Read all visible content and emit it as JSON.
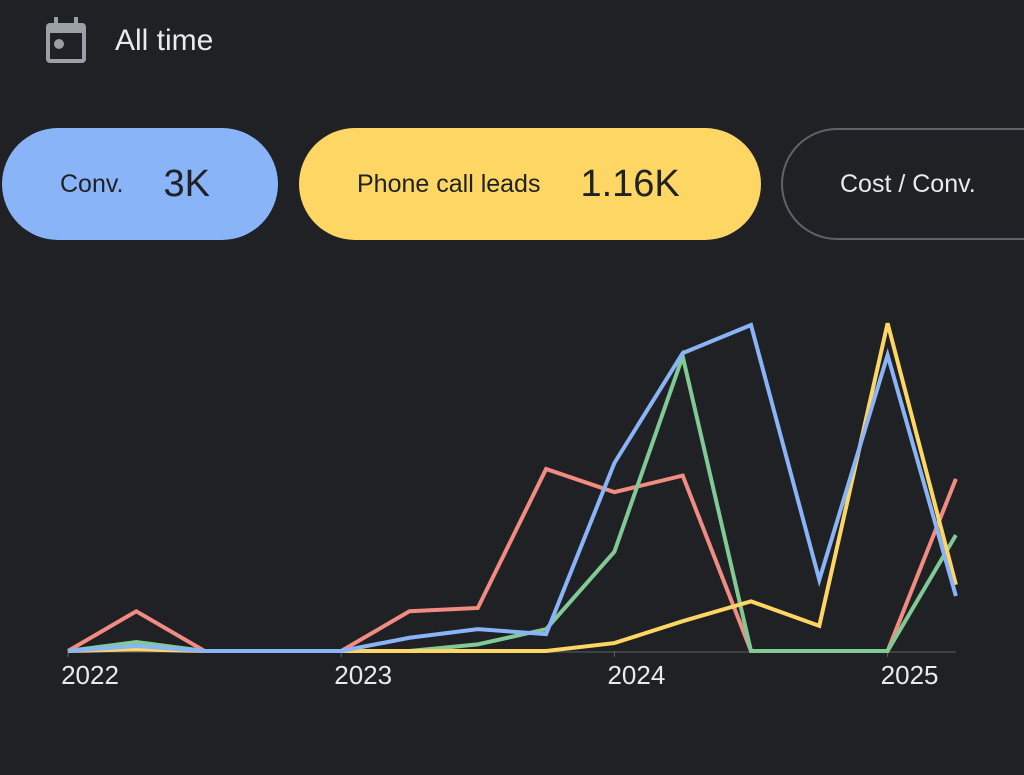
{
  "date_range": {
    "label": "All time",
    "icon": "calendar-icon"
  },
  "metrics": [
    {
      "label": "Conv.",
      "value": "3K",
      "color": "#8ab4f8",
      "selected": true
    },
    {
      "label": "Phone call leads",
      "value": "1.16K",
      "color": "#fdd663",
      "selected": true
    },
    {
      "label": "Cost / Conv.",
      "value": "",
      "selected": false
    }
  ],
  "chart_data": {
    "type": "line",
    "x": [
      "2022-Q1",
      "2022-Q2",
      "2022-Q3",
      "2022-Q4",
      "2023-Q1",
      "2023-Q2",
      "2023-Q3",
      "2023-Q4",
      "2024-Q1",
      "2024-Q2",
      "2024-Q3",
      "2024-Q4",
      "2025-Q1",
      "2025-Q2"
    ],
    "x_ticks": [
      "2022",
      "2023",
      "2024",
      "2025"
    ],
    "ylim": [
      0,
      100
    ],
    "grid": false,
    "series": [
      {
        "color": "#f28b82",
        "values": [
          0,
          12,
          0,
          0,
          0,
          12,
          13,
          55,
          48,
          53,
          0,
          0,
          0,
          52
        ]
      },
      {
        "color": "#81c995",
        "values": [
          0,
          2.7,
          0,
          0,
          0,
          0,
          2,
          6.6,
          30,
          89,
          0,
          0,
          0,
          35
        ]
      },
      {
        "color": "#fdd663",
        "values": [
          0,
          0.5,
          0,
          0,
          0,
          0,
          0,
          0,
          2.4,
          9,
          15,
          7.6,
          99,
          20
        ]
      },
      {
        "color": "#8ab4f8",
        "values": [
          0,
          1.5,
          0,
          0,
          0,
          4,
          6.6,
          5.1,
          56.8,
          90,
          98.5,
          21.5,
          89.4,
          16.6
        ]
      }
    ]
  }
}
